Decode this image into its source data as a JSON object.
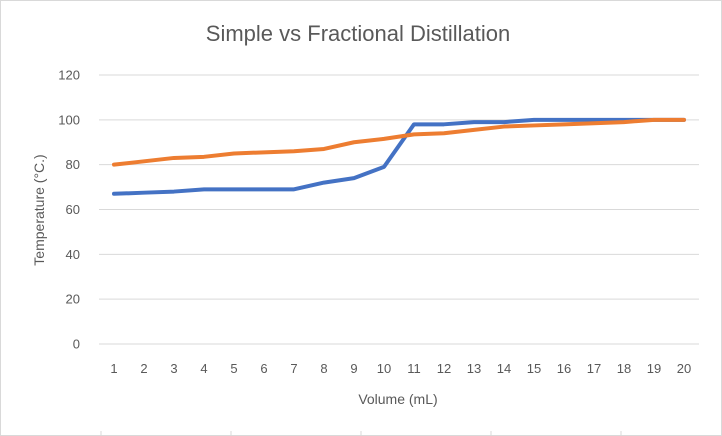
{
  "chart_data": {
    "type": "line",
    "title": "Simple vs Fractional Distillation",
    "xlabel": "Volume (mL)",
    "ylabel": "Temperature (°C.)",
    "categories": [
      "1",
      "2",
      "3",
      "4",
      "5",
      "6",
      "7",
      "8",
      "9",
      "10",
      "11",
      "12",
      "13",
      "14",
      "15",
      "16",
      "17",
      "18",
      "19",
      "20"
    ],
    "ylim": [
      0,
      120
    ],
    "yticks": [
      "0",
      "20",
      "40",
      "60",
      "80",
      "100",
      "120"
    ],
    "grid": true,
    "legend": "none",
    "series": [
      {
        "color": "#4472c4",
        "values": [
          67,
          67.5,
          68,
          69,
          69,
          69,
          69,
          72,
          74,
          79,
          98,
          98,
          99,
          99,
          100,
          100,
          100,
          100,
          100,
          100
        ]
      },
      {
        "color": "#ed7d31",
        "values": [
          80,
          81.5,
          83,
          83.5,
          85,
          85.5,
          86,
          87,
          90,
          91.5,
          93.5,
          94,
          95.5,
          97,
          97.5,
          98,
          98.5,
          99,
          100,
          100
        ]
      }
    ]
  }
}
